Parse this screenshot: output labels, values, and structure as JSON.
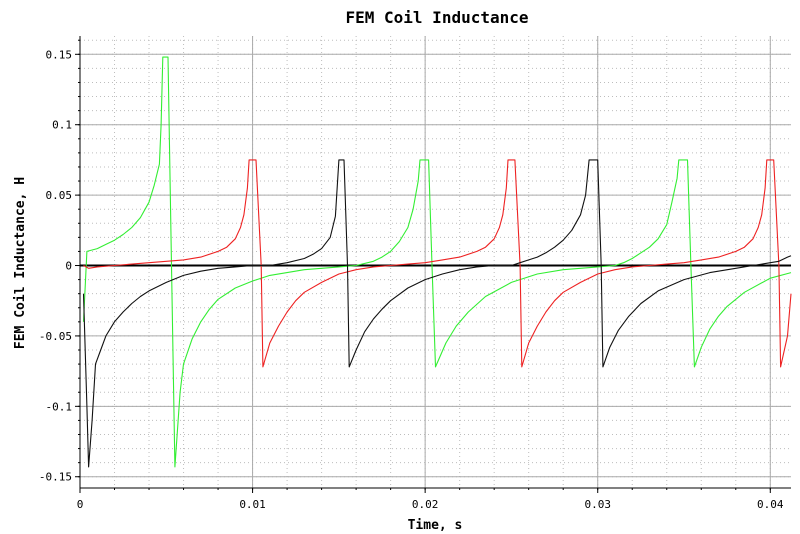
{
  "chart_data": {
    "type": "line",
    "title": "FEM Coil Inductance",
    "xlabel": "Time, s",
    "ylabel": "FEM Coil Inductance, H",
    "xlim": [
      0,
      0.0412
    ],
    "ylim": [
      -0.158,
      0.163
    ],
    "grid": true,
    "x_ticks": [
      0,
      0.01,
      0.02,
      0.03,
      0.04
    ],
    "x_tick_labels": [
      "0",
      "0.01",
      "0.02",
      "0.03",
      "0.04"
    ],
    "y_ticks": [
      -0.15,
      -0.1,
      -0.05,
      0,
      0.05,
      0.1,
      0.15
    ],
    "y_tick_labels": [
      "-0.15",
      "-0.1",
      "-0.05",
      "0",
      "0.05",
      "0.1",
      "0.15"
    ],
    "colors": {
      "green": "#33ee33",
      "red": "#ee2222",
      "black": "#111111",
      "zero_line": "#000000"
    },
    "series": [
      {
        "color": "green",
        "points": [
          [
            0.0002,
            -0.04
          ],
          [
            0.0004,
            0.01
          ],
          [
            0.001,
            0.012
          ],
          [
            0.0015,
            0.015
          ],
          [
            0.002,
            0.018
          ],
          [
            0.0025,
            0.022
          ],
          [
            0.003,
            0.027
          ],
          [
            0.0035,
            0.034
          ],
          [
            0.004,
            0.045
          ],
          [
            0.0043,
            0.057
          ],
          [
            0.0046,
            0.072
          ],
          [
            0.0047,
            0.1
          ],
          [
            0.0048,
            0.148
          ],
          [
            0.0051,
            0.148
          ],
          [
            0.0053,
            0.0
          ],
          [
            0.0055,
            -0.143
          ],
          [
            0.0058,
            -0.09
          ],
          [
            0.006,
            -0.07
          ],
          [
            0.0065,
            -0.052
          ],
          [
            0.007,
            -0.04
          ],
          [
            0.0075,
            -0.031
          ],
          [
            0.008,
            -0.024
          ],
          [
            0.009,
            -0.016
          ],
          [
            0.01,
            -0.011
          ],
          [
            0.011,
            -0.007
          ],
          [
            0.012,
            -0.005
          ],
          [
            0.013,
            -0.003
          ],
          [
            0.014,
            -0.002
          ],
          [
            0.015,
            -0.001
          ],
          [
            0.016,
            0.0
          ],
          [
            0.017,
            0.003
          ],
          [
            0.0175,
            0.006
          ],
          [
            0.018,
            0.01
          ],
          [
            0.0185,
            0.017
          ],
          [
            0.019,
            0.027
          ],
          [
            0.0193,
            0.04
          ],
          [
            0.0196,
            0.06
          ],
          [
            0.0197,
            0.075
          ],
          [
            0.0202,
            0.075
          ],
          [
            0.0204,
            0.0
          ],
          [
            0.0206,
            -0.072
          ],
          [
            0.0212,
            -0.055
          ],
          [
            0.0218,
            -0.043
          ],
          [
            0.0225,
            -0.033
          ],
          [
            0.0235,
            -0.022
          ],
          [
            0.025,
            -0.012
          ],
          [
            0.0265,
            -0.006
          ],
          [
            0.028,
            -0.003
          ],
          [
            0.03,
            -0.001
          ],
          [
            0.031,
            0.0
          ],
          [
            0.0315,
            0.002
          ],
          [
            0.032,
            0.005
          ],
          [
            0.0325,
            0.009
          ],
          [
            0.033,
            0.013
          ],
          [
            0.0335,
            0.019
          ],
          [
            0.034,
            0.029
          ],
          [
            0.0343,
            0.045
          ],
          [
            0.0346,
            0.062
          ],
          [
            0.0347,
            0.075
          ],
          [
            0.0352,
            0.075
          ],
          [
            0.0354,
            0.0
          ],
          [
            0.0356,
            -0.072
          ],
          [
            0.036,
            -0.058
          ],
          [
            0.0365,
            -0.045
          ],
          [
            0.037,
            -0.036
          ],
          [
            0.0375,
            -0.029
          ],
          [
            0.0385,
            -0.019
          ],
          [
            0.04,
            -0.009
          ],
          [
            0.0412,
            -0.005
          ]
        ]
      },
      {
        "color": "red",
        "points": [
          [
            0.0002,
            0.0
          ],
          [
            0.0005,
            -0.002
          ],
          [
            0.001,
            -0.001
          ],
          [
            0.002,
            0.0
          ],
          [
            0.003,
            0.001
          ],
          [
            0.004,
            0.002
          ],
          [
            0.005,
            0.003
          ],
          [
            0.006,
            0.004
          ],
          [
            0.007,
            0.006
          ],
          [
            0.008,
            0.01
          ],
          [
            0.0085,
            0.013
          ],
          [
            0.009,
            0.019
          ],
          [
            0.0093,
            0.027
          ],
          [
            0.0095,
            0.036
          ],
          [
            0.0097,
            0.055
          ],
          [
            0.0098,
            0.075
          ],
          [
            0.0102,
            0.075
          ],
          [
            0.0105,
            0.0
          ],
          [
            0.0106,
            -0.072
          ],
          [
            0.011,
            -0.055
          ],
          [
            0.0115,
            -0.043
          ],
          [
            0.012,
            -0.033
          ],
          [
            0.0125,
            -0.025
          ],
          [
            0.013,
            -0.019
          ],
          [
            0.014,
            -0.012
          ],
          [
            0.015,
            -0.006
          ],
          [
            0.016,
            -0.003
          ],
          [
            0.017,
            -0.001
          ],
          [
            0.018,
            0.0
          ],
          [
            0.019,
            0.001
          ],
          [
            0.02,
            0.002
          ],
          [
            0.021,
            0.004
          ],
          [
            0.022,
            0.006
          ],
          [
            0.023,
            0.01
          ],
          [
            0.0235,
            0.013
          ],
          [
            0.024,
            0.019
          ],
          [
            0.0243,
            0.027
          ],
          [
            0.0245,
            0.036
          ],
          [
            0.0247,
            0.055
          ],
          [
            0.0248,
            0.075
          ],
          [
            0.0252,
            0.075
          ],
          [
            0.0255,
            0.0
          ],
          [
            0.0256,
            -0.072
          ],
          [
            0.026,
            -0.055
          ],
          [
            0.0265,
            -0.043
          ],
          [
            0.027,
            -0.033
          ],
          [
            0.0275,
            -0.025
          ],
          [
            0.028,
            -0.019
          ],
          [
            0.029,
            -0.012
          ],
          [
            0.03,
            -0.006
          ],
          [
            0.031,
            -0.003
          ],
          [
            0.032,
            -0.001
          ],
          [
            0.033,
            0.0
          ],
          [
            0.034,
            0.001
          ],
          [
            0.035,
            0.002
          ],
          [
            0.036,
            0.004
          ],
          [
            0.037,
            0.006
          ],
          [
            0.038,
            0.01
          ],
          [
            0.0385,
            0.013
          ],
          [
            0.039,
            0.019
          ],
          [
            0.0393,
            0.027
          ],
          [
            0.0395,
            0.036
          ],
          [
            0.0397,
            0.055
          ],
          [
            0.0398,
            0.075
          ],
          [
            0.0402,
            0.075
          ],
          [
            0.0405,
            0.0
          ],
          [
            0.0406,
            -0.072
          ],
          [
            0.041,
            -0.05
          ],
          [
            0.0412,
            -0.02
          ]
        ]
      },
      {
        "color": "black",
        "points": [
          [
            0.0002,
            -0.02
          ],
          [
            0.0004,
            -0.1
          ],
          [
            0.0005,
            -0.143
          ],
          [
            0.0007,
            -0.11
          ],
          [
            0.0009,
            -0.07
          ],
          [
            0.0012,
            -0.06
          ],
          [
            0.0015,
            -0.05
          ],
          [
            0.002,
            -0.04
          ],
          [
            0.0025,
            -0.033
          ],
          [
            0.003,
            -0.027
          ],
          [
            0.0035,
            -0.022
          ],
          [
            0.004,
            -0.018
          ],
          [
            0.005,
            -0.012
          ],
          [
            0.006,
            -0.007
          ],
          [
            0.007,
            -0.004
          ],
          [
            0.008,
            -0.002
          ],
          [
            0.009,
            -0.001
          ],
          [
            0.01,
            0.0
          ],
          [
            0.011,
            0.0
          ],
          [
            0.012,
            0.002
          ],
          [
            0.013,
            0.005
          ],
          [
            0.0135,
            0.008
          ],
          [
            0.014,
            0.012
          ],
          [
            0.0145,
            0.02
          ],
          [
            0.0148,
            0.035
          ],
          [
            0.015,
            0.075
          ],
          [
            0.0153,
            0.075
          ],
          [
            0.0155,
            0.0
          ],
          [
            0.0156,
            -0.072
          ],
          [
            0.016,
            -0.06
          ],
          [
            0.0165,
            -0.047
          ],
          [
            0.017,
            -0.038
          ],
          [
            0.0175,
            -0.031
          ],
          [
            0.018,
            -0.025
          ],
          [
            0.019,
            -0.016
          ],
          [
            0.02,
            -0.01
          ],
          [
            0.021,
            -0.006
          ],
          [
            0.022,
            -0.003
          ],
          [
            0.023,
            -0.001
          ],
          [
            0.024,
            0.0
          ],
          [
            0.025,
            0.0
          ],
          [
            0.0255,
            0.002
          ],
          [
            0.026,
            0.004
          ],
          [
            0.0265,
            0.006
          ],
          [
            0.027,
            0.009
          ],
          [
            0.0275,
            0.013
          ],
          [
            0.028,
            0.018
          ],
          [
            0.0285,
            0.025
          ],
          [
            0.029,
            0.036
          ],
          [
            0.0293,
            0.05
          ],
          [
            0.0295,
            0.075
          ],
          [
            0.03,
            0.075
          ],
          [
            0.0302,
            0.0
          ],
          [
            0.0303,
            -0.072
          ],
          [
            0.0307,
            -0.058
          ],
          [
            0.0312,
            -0.046
          ],
          [
            0.0318,
            -0.036
          ],
          [
            0.0325,
            -0.027
          ],
          [
            0.0335,
            -0.018
          ],
          [
            0.035,
            -0.01
          ],
          [
            0.0365,
            -0.005
          ],
          [
            0.038,
            -0.002
          ],
          [
            0.039,
            0.0
          ],
          [
            0.04,
            0.002
          ],
          [
            0.0405,
            0.003
          ],
          [
            0.041,
            0.006
          ],
          [
            0.0412,
            0.007
          ]
        ]
      }
    ]
  }
}
